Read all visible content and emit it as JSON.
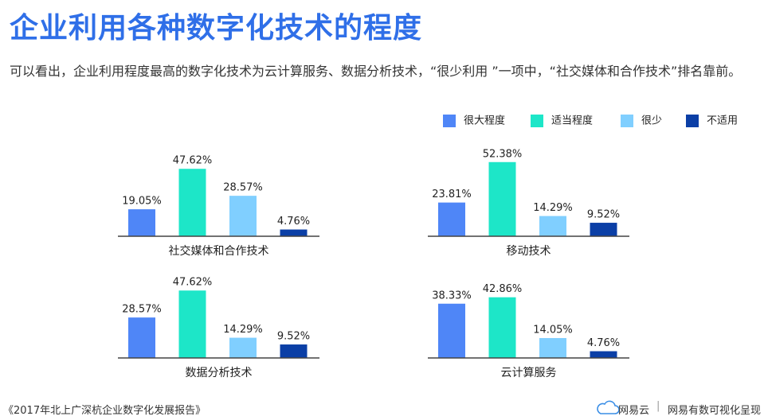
{
  "header": {
    "title": "企业利用各种数字化技术的程度",
    "subtitle": "可以看出，企业利用程度最高的数字化技术为云计算服务、数据分析技术，“很少利用 ”一项中，“社交媒体和合作技术”排名靠前。"
  },
  "legend": [
    {
      "name": "很大程度",
      "color": "#4f86f7"
    },
    {
      "name": "适当程度",
      "color": "#1de6c8"
    },
    {
      "name": "很少",
      "color": "#80cfff"
    },
    {
      "name": "不适用",
      "color": "#0b3fa6"
    }
  ],
  "chart_data": [
    {
      "type": "bar",
      "title": "社交媒体和合作技术",
      "values": [
        19.05,
        47.62,
        28.57,
        4.76
      ],
      "value_labels": [
        "19.05%",
        "47.62%",
        "28.57%",
        "4.76%"
      ]
    },
    {
      "type": "bar",
      "title": "移动技术",
      "values": [
        23.81,
        52.38,
        14.29,
        9.52
      ],
      "value_labels": [
        "23.81%",
        "52.38%",
        "14.29%",
        "9.52%"
      ]
    },
    {
      "type": "bar",
      "title": "数据分析技术",
      "values": [
        28.57,
        47.62,
        14.29,
        9.52
      ],
      "value_labels": [
        "28.57%",
        "47.62%",
        "14.29%",
        "9.52%"
      ]
    },
    {
      "type": "bar",
      "title": "云计算服务",
      "values": [
        38.33,
        42.86,
        14.05,
        4.76
      ],
      "value_labels": [
        "38.33%",
        "42.86%",
        "14.05%",
        "4.76%"
      ]
    }
  ],
  "footer": {
    "source": "《2017年北上广深杭企业数字化发展报告》",
    "brand": "网易云",
    "credit": "网易有数可视化呈现"
  }
}
